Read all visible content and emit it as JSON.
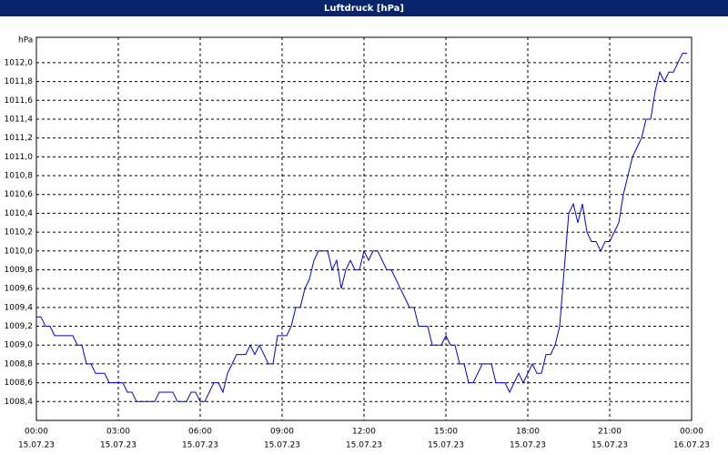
{
  "chart_data": {
    "type": "line",
    "title": "Luftdruck [hPa]",
    "y_unit": "hPa",
    "x": [
      0,
      10,
      20,
      30,
      40,
      50,
      60,
      70,
      80,
      90,
      100,
      110,
      120,
      130,
      140,
      150,
      160,
      170,
      180,
      190,
      200,
      210,
      220,
      230,
      240,
      250,
      260,
      270,
      280,
      290,
      300,
      310,
      320,
      330,
      340,
      350,
      360,
      370,
      380,
      390,
      400,
      410,
      420,
      430,
      440,
      450,
      460,
      470,
      480,
      490,
      500,
      510,
      520,
      530,
      540,
      550,
      560,
      570,
      580,
      590,
      600,
      610,
      620,
      630,
      640,
      650,
      660,
      670,
      680,
      690,
      700,
      710,
      720,
      730,
      740,
      750,
      760,
      770,
      780,
      790,
      800,
      810,
      820,
      830,
      840,
      850,
      860,
      870,
      880,
      890,
      900,
      910,
      920,
      930,
      940,
      950,
      960,
      970,
      980,
      990,
      1000,
      1010,
      1020,
      1030,
      1040,
      1050,
      1060,
      1070,
      1080,
      1090,
      1100,
      1110,
      1120,
      1130,
      1140,
      1150,
      1160,
      1170,
      1180,
      1190,
      1200,
      1210,
      1220,
      1230,
      1240,
      1250,
      1260,
      1270,
      1280,
      1290,
      1300,
      1310,
      1320,
      1330,
      1340,
      1350,
      1360,
      1370,
      1380,
      1390,
      1400,
      1410,
      1420,
      1430
    ],
    "series": [
      {
        "color": "#0000cc",
        "values": [
          1009.3,
          1009.3,
          1009.2,
          1009.2,
          1009.1,
          1009.1,
          1009.1,
          1009.1,
          1009.1,
          1009.0,
          1009.0,
          1008.8,
          1008.8,
          1008.7,
          1008.7,
          1008.7,
          1008.6,
          1008.6,
          1008.6,
          1008.6,
          1008.5,
          1008.5,
          1008.4,
          1008.4,
          1008.4,
          1008.4,
          1008.4,
          1008.5,
          1008.5,
          1008.5,
          1008.5,
          1008.4,
          1008.4,
          1008.4,
          1008.5,
          1008.5,
          1008.4,
          1008.4,
          1008.5,
          1008.6,
          1008.6,
          1008.5,
          1008.7,
          1008.8,
          1008.9,
          1008.9,
          1008.9,
          1009.0,
          1008.9,
          1009.0,
          1008.9,
          1008.8,
          1008.8,
          1009.1,
          1009.1,
          1009.1,
          1009.2,
          1009.4,
          1009.4,
          1009.6,
          1009.7,
          1009.9,
          1010.0,
          1010.0,
          1010.0,
          1009.8,
          1009.9,
          1009.6,
          1009.8,
          1009.9,
          1009.8,
          1009.8,
          1010.0,
          1009.9,
          1010.0,
          1010.0,
          1009.9,
          1009.8,
          1009.8,
          1009.7,
          1009.6,
          1009.5,
          1009.4,
          1009.4,
          1009.2,
          1009.2,
          1009.2,
          1009.0,
          1009.0,
          1009.0,
          1009.1,
          1009.0,
          1009.0,
          1008.8,
          1008.8,
          1008.6,
          1008.6,
          1008.7,
          1008.8,
          1008.8,
          1008.8,
          1008.6,
          1008.6,
          1008.6,
          1008.5,
          1008.6,
          1008.7,
          1008.6,
          1008.7,
          1008.8,
          1008.7,
          1008.7,
          1008.9,
          1008.9,
          1009.0,
          1009.2,
          1009.8,
          1010.4,
          1010.5,
          1010.3,
          1010.5,
          1010.2,
          1010.1,
          1010.1,
          1010.0,
          1010.1,
          1010.1,
          1010.2,
          1010.3,
          1010.6,
          1010.8,
          1011.0,
          1011.1,
          1011.2,
          1011.4,
          1011.4,
          1011.7,
          1011.9,
          1011.8,
          1011.9,
          1011.9,
          1012.0,
          1012.1,
          1012.1
        ]
      }
    ],
    "xlim": [
      0,
      1440
    ],
    "xticks": [
      {
        "value": 0,
        "label": "00:00",
        "date": "15.07.23"
      },
      {
        "value": 180,
        "label": "03:00",
        "date": "15.07.23"
      },
      {
        "value": 360,
        "label": "06:00",
        "date": "15.07.23"
      },
      {
        "value": 540,
        "label": "09:00",
        "date": "15.07.23"
      },
      {
        "value": 720,
        "label": "12:00",
        "date": "15.07.23"
      },
      {
        "value": 900,
        "label": "15:00",
        "date": "15.07.23"
      },
      {
        "value": 1080,
        "label": "18:00",
        "date": "15.07.23"
      },
      {
        "value": 1260,
        "label": "21:00",
        "date": "15.07.23"
      },
      {
        "value": 1440,
        "label": "00:00",
        "date": "16.07.23"
      }
    ],
    "ylim": [
      1008.2,
      1012.27
    ],
    "yticks": [
      {
        "value": 1008.4,
        "label": "1008,4"
      },
      {
        "value": 1008.6,
        "label": "1008,6"
      },
      {
        "value": 1008.8,
        "label": "1008,8"
      },
      {
        "value": 1009.0,
        "label": "1009,0"
      },
      {
        "value": 1009.2,
        "label": "1009,2"
      },
      {
        "value": 1009.4,
        "label": "1009,4"
      },
      {
        "value": 1009.6,
        "label": "1009,6"
      },
      {
        "value": 1009.8,
        "label": "1009,8"
      },
      {
        "value": 1010.0,
        "label": "1010,0"
      },
      {
        "value": 1010.2,
        "label": "1010,2"
      },
      {
        "value": 1010.4,
        "label": "1010,4"
      },
      {
        "value": 1010.6,
        "label": "1010,6"
      },
      {
        "value": 1010.8,
        "label": "1010,8"
      },
      {
        "value": 1011.0,
        "label": "1011,0"
      },
      {
        "value": 1011.2,
        "label": "1011,2"
      },
      {
        "value": 1011.4,
        "label": "1011,4"
      },
      {
        "value": 1011.6,
        "label": "1011,6"
      },
      {
        "value": 1011.8,
        "label": "1011,8"
      },
      {
        "value": 1012.0,
        "label": "1012,0"
      }
    ],
    "grid": true
  }
}
